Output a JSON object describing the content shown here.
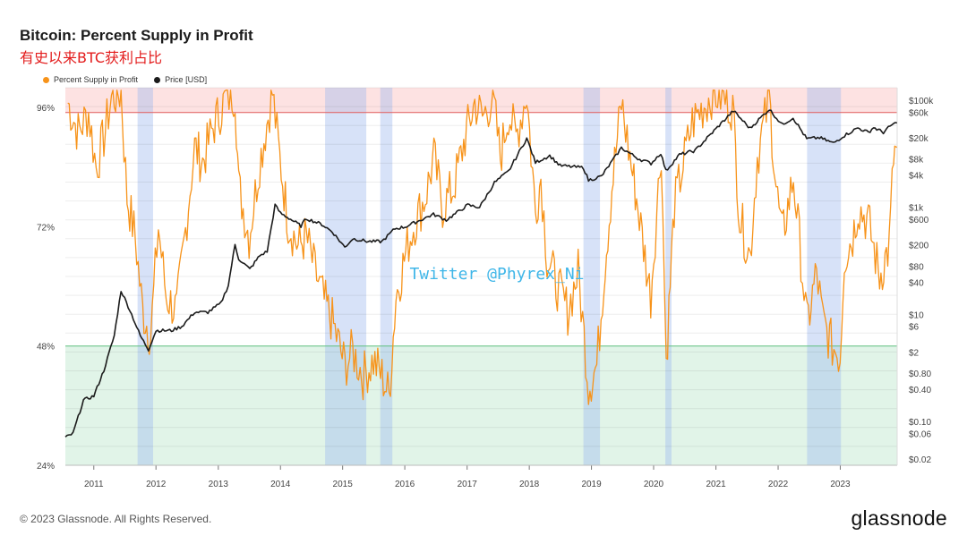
{
  "title": "Bitcoin: Percent Supply in Profit",
  "subtitle": "有史以来BTC获利占比",
  "watermark": "Twitter @Phyrex_Ni",
  "footer": "© 2023 Glassnode. All Rights Reserved.",
  "logo": "glassnode",
  "chart_data": {
    "type": "line",
    "x_ticks": [
      "2011",
      "2012",
      "2013",
      "2014",
      "2015",
      "2016",
      "2017",
      "2018",
      "2019",
      "2020",
      "2021",
      "2022",
      "2023"
    ],
    "y_left_ticks": [
      "96%",
      "72%",
      "48%",
      "24%"
    ],
    "y_right_ticks": [
      "$100k",
      "$60k",
      "$20k",
      "$8k",
      "$4k",
      "$1k",
      "$600",
      "$200",
      "$80",
      "$40",
      "$10",
      "$6",
      "$2",
      "$0.80",
      "$0.40",
      "$0.10",
      "$0.06",
      "$0.02"
    ],
    "y_left_range": [
      24,
      100
    ],
    "y_right_scale": "log",
    "x_range": [
      "2010-07-18",
      "2023-12-01"
    ],
    "zones": [
      {
        "name": "high",
        "from": 95,
        "to": 100,
        "color": "#fde2e2",
        "line_color": "#e05a5a"
      },
      {
        "name": "low",
        "from": 24,
        "to": 48,
        "color": "#e1f4e8",
        "line_color": "#5fbf7f"
      }
    ],
    "highlight_periods": [
      [
        "2011-09-15",
        "2011-12-15"
      ],
      [
        "2014-09-20",
        "2015-05-20"
      ],
      [
        "2015-08-10",
        "2015-10-20"
      ],
      [
        "2018-11-15",
        "2019-02-20"
      ],
      [
        "2020-03-10",
        "2020-04-15"
      ],
      [
        "2022-06-20",
        "2023-01-05"
      ]
    ],
    "series": [
      {
        "name": "Percent Supply in Profit",
        "color": "#f7931a",
        "points": [
          [
            "2010-08-01",
            97
          ],
          [
            "2010-10-01",
            91
          ],
          [
            "2010-12-01",
            95
          ],
          [
            "2011-01-15",
            84
          ],
          [
            "2011-03-01",
            90
          ],
          [
            "2011-04-15",
            98
          ],
          [
            "2011-06-10",
            99
          ],
          [
            "2011-07-15",
            78
          ],
          [
            "2011-09-01",
            70
          ],
          [
            "2011-10-15",
            55
          ],
          [
            "2011-12-01",
            50
          ],
          [
            "2012-01-15",
            72
          ],
          [
            "2012-03-01",
            58
          ],
          [
            "2012-05-01",
            55
          ],
          [
            "2012-07-01",
            74
          ],
          [
            "2012-08-15",
            88
          ],
          [
            "2012-10-01",
            85
          ],
          [
            "2012-12-01",
            92
          ],
          [
            "2013-02-15",
            98
          ],
          [
            "2013-04-10",
            99
          ],
          [
            "2013-05-01",
            80
          ],
          [
            "2013-07-01",
            70
          ],
          [
            "2013-09-01",
            85
          ],
          [
            "2013-11-15",
            99
          ],
          [
            "2013-12-20",
            88
          ],
          [
            "2014-02-15",
            73
          ],
          [
            "2014-04-15",
            68
          ],
          [
            "2014-06-01",
            70
          ],
          [
            "2014-07-15",
            64
          ],
          [
            "2014-09-15",
            57
          ],
          [
            "2014-11-01",
            53
          ],
          [
            "2015-01-15",
            44
          ],
          [
            "2015-03-01",
            47
          ],
          [
            "2015-05-01",
            42
          ],
          [
            "2015-07-01",
            45
          ],
          [
            "2015-08-20",
            42
          ],
          [
            "2015-10-01",
            38
          ],
          [
            "2015-11-10",
            58
          ],
          [
            "2016-01-15",
            68
          ],
          [
            "2016-03-01",
            73
          ],
          [
            "2016-05-01",
            78
          ],
          [
            "2016-06-20",
            86
          ],
          [
            "2016-08-10",
            76
          ],
          [
            "2016-10-15",
            80
          ],
          [
            "2016-12-20",
            90
          ],
          [
            "2017-02-15",
            97
          ],
          [
            "2017-04-01",
            94
          ],
          [
            "2017-06-01",
            98
          ],
          [
            "2017-07-15",
            86
          ],
          [
            "2017-09-01",
            95
          ],
          [
            "2017-10-15",
            90
          ],
          [
            "2017-12-17",
            99
          ],
          [
            "2018-02-06",
            75
          ],
          [
            "2018-03-10",
            82
          ],
          [
            "2018-04-15",
            66
          ],
          [
            "2018-06-15",
            60
          ],
          [
            "2018-08-15",
            55
          ],
          [
            "2018-10-15",
            63
          ],
          [
            "2018-12-15",
            40
          ],
          [
            "2019-02-01",
            44
          ],
          [
            "2019-03-15",
            62
          ],
          [
            "2019-05-01",
            80
          ],
          [
            "2019-06-26",
            97
          ],
          [
            "2019-08-15",
            86
          ],
          [
            "2019-10-01",
            76
          ],
          [
            "2019-12-15",
            58
          ],
          [
            "2020-02-15",
            88
          ],
          [
            "2020-03-15",
            45
          ],
          [
            "2020-05-01",
            76
          ],
          [
            "2020-07-01",
            86
          ],
          [
            "2020-08-15",
            93
          ],
          [
            "2020-10-15",
            96
          ],
          [
            "2020-12-15",
            99
          ],
          [
            "2021-02-15",
            98
          ],
          [
            "2021-04-10",
            96
          ],
          [
            "2021-05-20",
            74
          ],
          [
            "2021-07-20",
            66
          ],
          [
            "2021-09-01",
            86
          ],
          [
            "2021-11-10",
            98
          ],
          [
            "2021-12-20",
            80
          ],
          [
            "2022-01-25",
            70
          ],
          [
            "2022-04-01",
            82
          ],
          [
            "2022-05-15",
            66
          ],
          [
            "2022-06-20",
            52
          ],
          [
            "2022-08-15",
            63
          ],
          [
            "2022-09-20",
            53
          ],
          [
            "2022-11-15",
            48
          ],
          [
            "2022-12-31",
            46
          ],
          [
            "2023-01-25",
            66
          ],
          [
            "2023-03-15",
            70
          ],
          [
            "2023-04-15",
            76
          ],
          [
            "2023-06-15",
            73
          ],
          [
            "2023-08-20",
            62
          ],
          [
            "2023-10-15",
            68
          ],
          [
            "2023-11-10",
            86
          ],
          [
            "2023-11-30",
            88
          ]
        ]
      },
      {
        "name": "Price [USD]",
        "color": "#1b1b1b",
        "points": [
          [
            "2010-07-18",
            0.05
          ],
          [
            "2010-09-01",
            0.06
          ],
          [
            "2010-11-01",
            0.25
          ],
          [
            "2011-01-01",
            0.3
          ],
          [
            "2011-03-01",
            0.9
          ],
          [
            "2011-05-01",
            4
          ],
          [
            "2011-06-10",
            28
          ],
          [
            "2011-08-01",
            12
          ],
          [
            "2011-10-01",
            4
          ],
          [
            "2011-11-18",
            2.2
          ],
          [
            "2012-01-01",
            5
          ],
          [
            "2012-04-01",
            5
          ],
          [
            "2012-06-01",
            6
          ],
          [
            "2012-08-15",
            11
          ],
          [
            "2012-11-01",
            11
          ],
          [
            "2013-01-15",
            16
          ],
          [
            "2013-03-01",
            35
          ],
          [
            "2013-04-09",
            200
          ],
          [
            "2013-05-01",
            110
          ],
          [
            "2013-07-05",
            70
          ],
          [
            "2013-09-01",
            125
          ],
          [
            "2013-10-15",
            150
          ],
          [
            "2013-11-30",
            1100
          ],
          [
            "2014-01-01",
            780
          ],
          [
            "2014-03-01",
            600
          ],
          [
            "2014-05-01",
            450
          ],
          [
            "2014-06-01",
            620
          ],
          [
            "2014-09-01",
            480
          ],
          [
            "2014-11-01",
            350
          ],
          [
            "2015-01-14",
            180
          ],
          [
            "2015-03-01",
            260
          ],
          [
            "2015-06-01",
            230
          ],
          [
            "2015-08-20",
            230
          ],
          [
            "2015-11-04",
            400
          ],
          [
            "2016-01-01",
            430
          ],
          [
            "2016-06-17",
            740
          ],
          [
            "2016-09-01",
            580
          ],
          [
            "2017-01-04",
            1100
          ],
          [
            "2017-03-15",
            1000
          ],
          [
            "2017-06-11",
            2900
          ],
          [
            "2017-09-01",
            4700
          ],
          [
            "2017-12-17",
            19500
          ],
          [
            "2018-02-06",
            6900
          ],
          [
            "2018-05-01",
            9200
          ],
          [
            "2018-06-30",
            6000
          ],
          [
            "2018-11-15",
            5500
          ],
          [
            "2018-12-15",
            3200
          ],
          [
            "2019-03-01",
            3800
          ],
          [
            "2019-06-26",
            12900
          ],
          [
            "2019-09-30",
            8200
          ],
          [
            "2019-12-17",
            6600
          ],
          [
            "2020-02-12",
            10300
          ],
          [
            "2020-03-13",
            4800
          ],
          [
            "2020-06-01",
            9600
          ],
          [
            "2020-09-01",
            11500
          ],
          [
            "2020-12-31",
            29000
          ],
          [
            "2021-04-13",
            63500
          ],
          [
            "2021-07-20",
            29800
          ],
          [
            "2021-11-10",
            68000
          ],
          [
            "2022-01-24",
            35000
          ],
          [
            "2022-03-30",
            47000
          ],
          [
            "2022-06-18",
            19000
          ],
          [
            "2022-09-01",
            20000
          ],
          [
            "2022-11-21",
            15800
          ],
          [
            "2023-01-15",
            21000
          ],
          [
            "2023-04-14",
            30400
          ],
          [
            "2023-06-15",
            25000
          ],
          [
            "2023-07-15",
            31000
          ],
          [
            "2023-09-11",
            25100
          ],
          [
            "2023-10-30",
            34500
          ],
          [
            "2023-11-30",
            37800
          ]
        ]
      }
    ],
    "grid": true,
    "legend_position": "top-left"
  }
}
